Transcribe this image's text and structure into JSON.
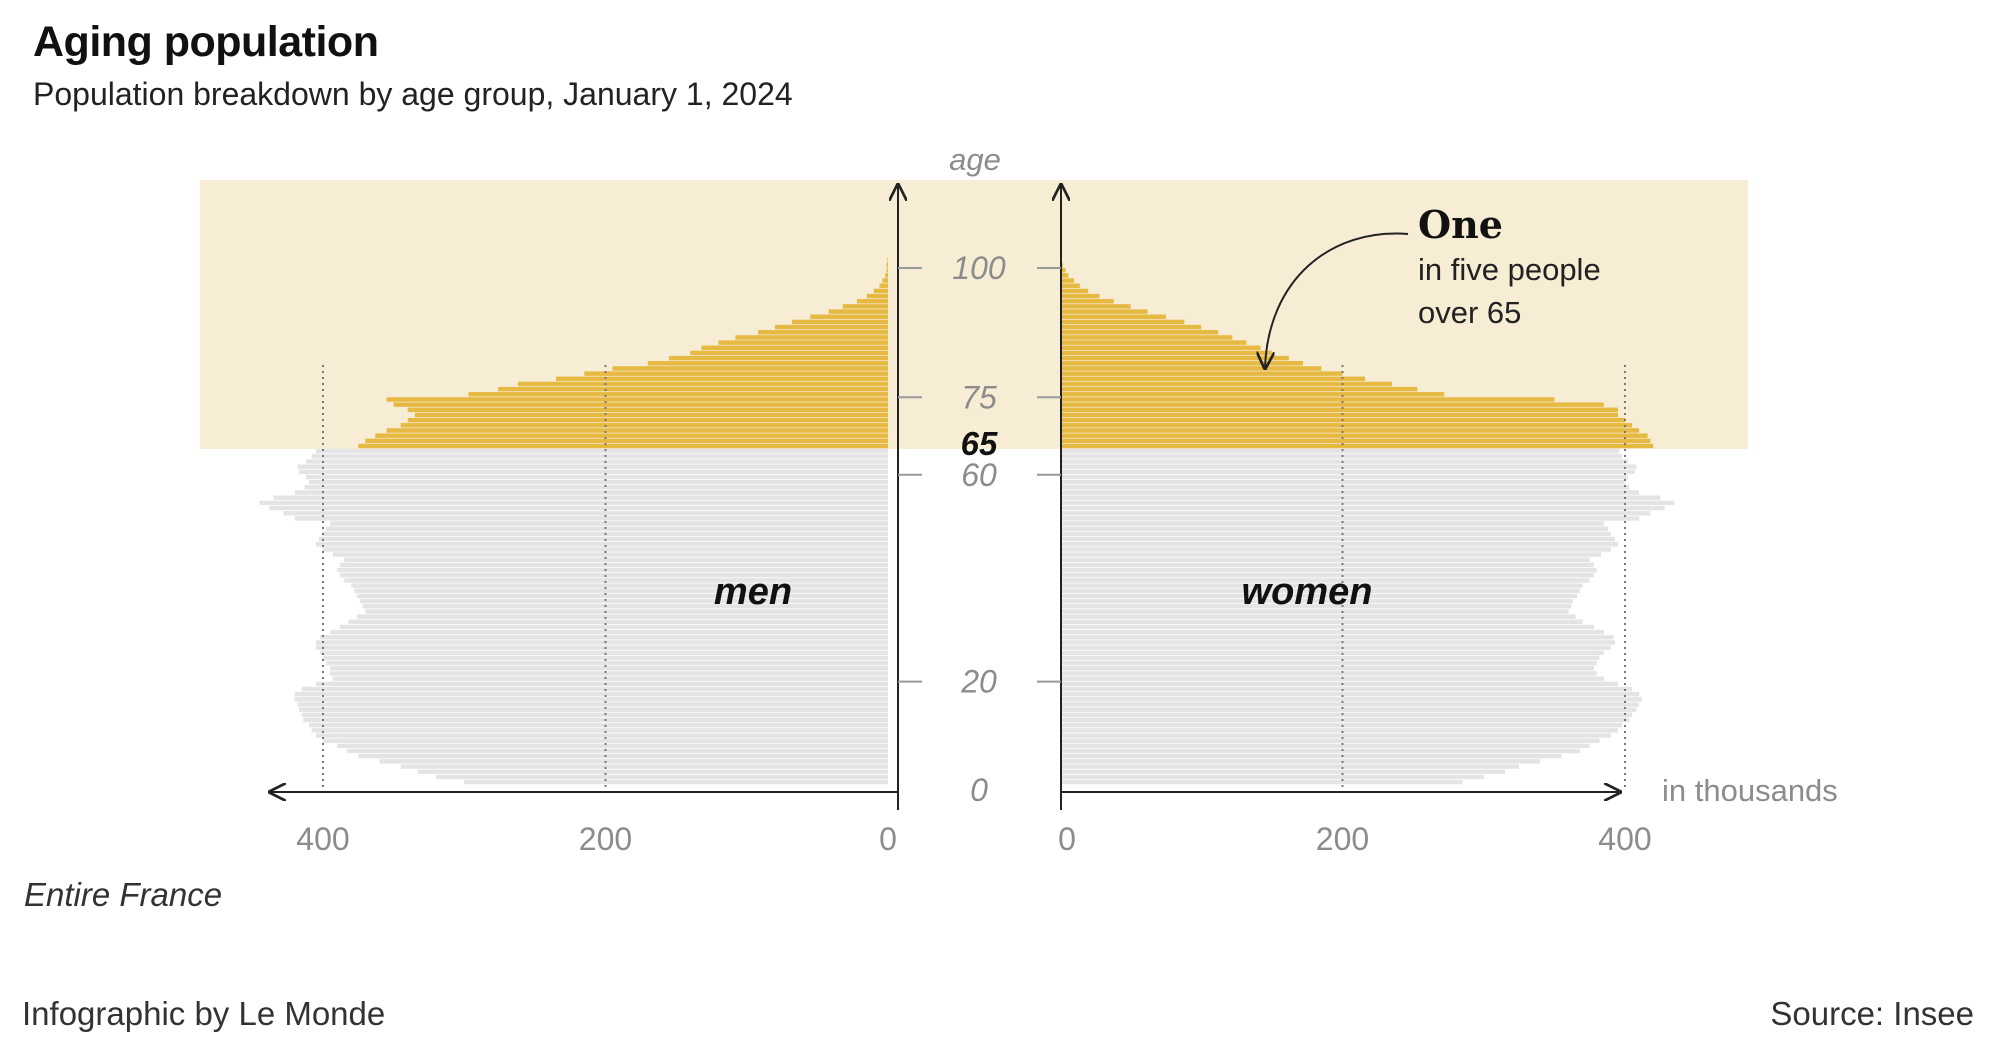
{
  "title": "Aging population",
  "subtitle": "Population breakdown by age group, January 1, 2024",
  "region_note": "Entire France",
  "credit": "Infographic by Le Monde",
  "source": "Source: Insee",
  "colors": {
    "over65": "#e6b942",
    "under65": "#e4e4e6",
    "highlight_band": "#f7ecd4",
    "axis": "#222222",
    "tick_text": "#8c8c8c"
  },
  "chart_data": {
    "type": "bar",
    "subtype": "population-pyramid",
    "unit_label": "in thousands",
    "age_axis_title": "age",
    "age_ticks": [
      {
        "value": 0,
        "label": "0"
      },
      {
        "value": 20,
        "label": "20"
      },
      {
        "value": 60,
        "label": "60"
      },
      {
        "value": 65,
        "label": "65",
        "emphasis": true
      },
      {
        "value": 75,
        "label": "75"
      },
      {
        "value": 100,
        "label": "100"
      }
    ],
    "men_ticks": [
      "400",
      "200",
      "0"
    ],
    "women_ticks": [
      "0",
      "200",
      "400"
    ],
    "xlim": [
      0,
      450
    ],
    "highlight_from_age": 65,
    "series": [
      {
        "name": "men",
        "values": [
          300,
          320,
          333,
          345,
          360,
          375,
          383,
          390,
          400,
          405,
          408,
          410,
          414,
          415,
          417,
          418,
          420,
          420,
          415,
          405,
          393,
          395,
          395,
          398,
          400,
          402,
          405,
          405,
          402,
          395,
          388,
          382,
          376,
          370,
          372,
          374,
          376,
          378,
          380,
          385,
          388,
          390,
          388,
          385,
          393,
          400,
          405,
          403,
          400,
          398,
          395,
          420,
          428,
          438,
          445,
          435,
          420,
          413,
          410,
          412,
          417,
          418,
          412,
          408,
          405,
          375,
          370,
          363,
          355,
          345,
          340,
          335,
          340,
          350,
          355,
          297,
          276,
          262,
          235,
          215,
          195,
          170,
          155,
          140,
          132,
          120,
          108,
          92,
          80,
          68,
          55,
          42,
          32,
          22,
          15,
          10,
          6,
          4,
          2,
          1,
          1,
          0.5
        ]
      },
      {
        "name": "women",
        "values": [
          285,
          300,
          315,
          325,
          340,
          355,
          368,
          375,
          382,
          390,
          395,
          398,
          403,
          405,
          408,
          410,
          412,
          410,
          405,
          395,
          385,
          380,
          378,
          380,
          382,
          385,
          390,
          393,
          392,
          385,
          378,
          370,
          365,
          360,
          362,
          363,
          366,
          368,
          370,
          375,
          378,
          380,
          378,
          375,
          383,
          390,
          395,
          393,
          390,
          388,
          385,
          410,
          418,
          428,
          435,
          425,
          410,
          403,
          400,
          402,
          407,
          408,
          402,
          398,
          396,
          420,
          418,
          416,
          410,
          405,
          400,
          395,
          395,
          385,
          350,
          272,
          253,
          235,
          216,
          200,
          185,
          172,
          162,
          150,
          142,
          132,
          122,
          112,
          100,
          88,
          75,
          62,
          50,
          38,
          28,
          20,
          14,
          10,
          6,
          4,
          2,
          1
        ]
      }
    ]
  },
  "labels": {
    "men": "men",
    "women": "women",
    "callout_bold": "One",
    "callout_line1": "in five people",
    "callout_line2": "over 65"
  }
}
